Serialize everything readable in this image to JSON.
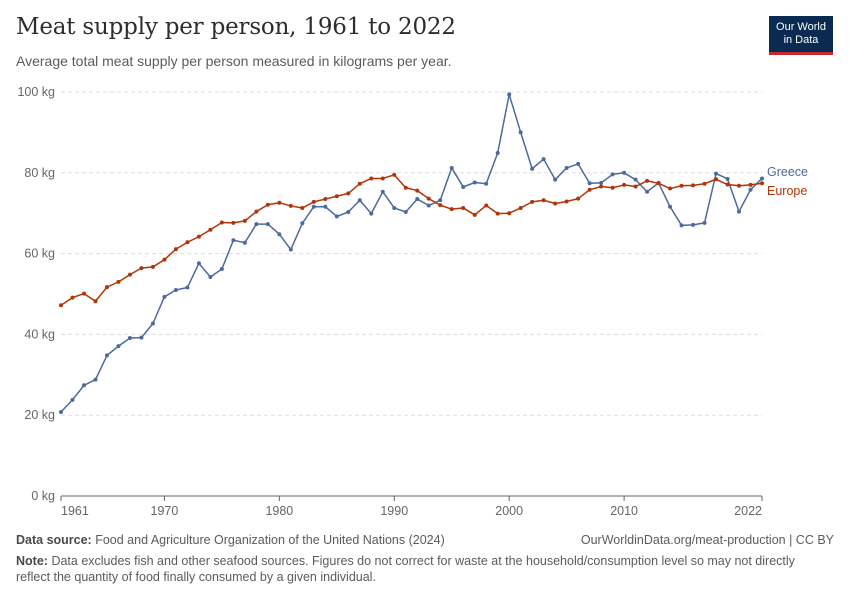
{
  "header": {
    "title": "Meat supply per person, 1961 to 2022",
    "subtitle": "Average total meat supply per person measured in kilograms per year.",
    "logo_line1": "Our World",
    "logo_line2": "in Data"
  },
  "footer": {
    "source_label": "Data source:",
    "source_text": "Food and Agriculture Organization of the United Nations (2024)",
    "credit": "OurWorldinData.org/meat-production | CC BY",
    "note_label": "Note:",
    "note_text": "Data excludes fish and other seafood sources. Figures do not correct for waste at the household/consumption level so may not directly reflect the quantity of food finally consumed by a given individual."
  },
  "colors": {
    "greece": "#4c6a9c",
    "europe": "#b13507",
    "grid": "#dddddd",
    "axis": "#666666"
  },
  "chart_data": {
    "type": "line",
    "title": "Meat supply per person, 1961 to 2022",
    "xlim": [
      1961,
      2022
    ],
    "ylim": [
      0,
      100
    ],
    "ylabel": "",
    "y_ticks": [
      0,
      20,
      40,
      60,
      80,
      100
    ],
    "y_tick_labels": [
      "0 kg",
      "20 kg",
      "40 kg",
      "60 kg",
      "80 kg",
      "100 kg"
    ],
    "x_ticks": [
      1961,
      1970,
      1980,
      1990,
      2000,
      2010,
      2022
    ],
    "x_tick_labels": [
      "1961",
      "1970",
      "1980",
      "1990",
      "2000",
      "2010",
      "2022"
    ],
    "grid": "horizontal dashed",
    "legend": "right end labels",
    "x": [
      1961,
      1962,
      1963,
      1964,
      1965,
      1966,
      1967,
      1968,
      1969,
      1970,
      1971,
      1972,
      1973,
      1974,
      1975,
      1976,
      1977,
      1978,
      1979,
      1980,
      1981,
      1982,
      1983,
      1984,
      1985,
      1986,
      1987,
      1988,
      1989,
      1990,
      1991,
      1992,
      1993,
      1994,
      1995,
      1996,
      1997,
      1998,
      1999,
      2000,
      2001,
      2002,
      2003,
      2004,
      2005,
      2006,
      2007,
      2008,
      2009,
      2010,
      2011,
      2012,
      2013,
      2014,
      2015,
      2016,
      2017,
      2018,
      2019,
      2020,
      2021,
      2022
    ],
    "series": [
      {
        "name": "Greece",
        "values": [
          20.8,
          23.8,
          27.4,
          28.8,
          34.8,
          37.1,
          39.1,
          39.2,
          42.7,
          49.3,
          51.0,
          51.6,
          57.6,
          54.2,
          56.2,
          63.3,
          62.7,
          67.3,
          67.3,
          64.8,
          61.0,
          67.5,
          71.6,
          71.6,
          69.2,
          70.3,
          73.2,
          69.9,
          75.3,
          71.3,
          70.3,
          73.5,
          71.9,
          73.2,
          81.2,
          76.5,
          77.6,
          77.3,
          84.9,
          99.4,
          90.0,
          81.0,
          83.4,
          78.3,
          81.2,
          82.2,
          77.4,
          77.5,
          79.6,
          80.0,
          78.3,
          75.3,
          77.5,
          71.6,
          67.0,
          67.1,
          67.6,
          79.8,
          78.5,
          70.4,
          75.8,
          78.6
        ]
      },
      {
        "name": "Europe",
        "values": [
          47.2,
          49.1,
          50.1,
          48.2,
          51.7,
          53.0,
          54.8,
          56.4,
          56.7,
          58.5,
          61.1,
          62.8,
          64.2,
          65.9,
          67.7,
          67.6,
          68.1,
          70.4,
          72.1,
          72.6,
          71.8,
          71.3,
          72.8,
          73.5,
          74.2,
          74.9,
          77.3,
          78.6,
          78.6,
          79.5,
          76.3,
          75.6,
          73.6,
          72.0,
          71.0,
          71.3,
          69.6,
          71.9,
          69.9,
          70.0,
          71.3,
          72.8,
          73.2,
          72.4,
          72.9,
          73.6,
          75.8,
          76.6,
          76.3,
          77.0,
          76.6,
          78.0,
          77.4,
          76.1,
          76.8,
          76.9,
          77.3,
          78.4,
          77.1,
          76.8,
          77.0,
          77.4
        ]
      }
    ]
  }
}
